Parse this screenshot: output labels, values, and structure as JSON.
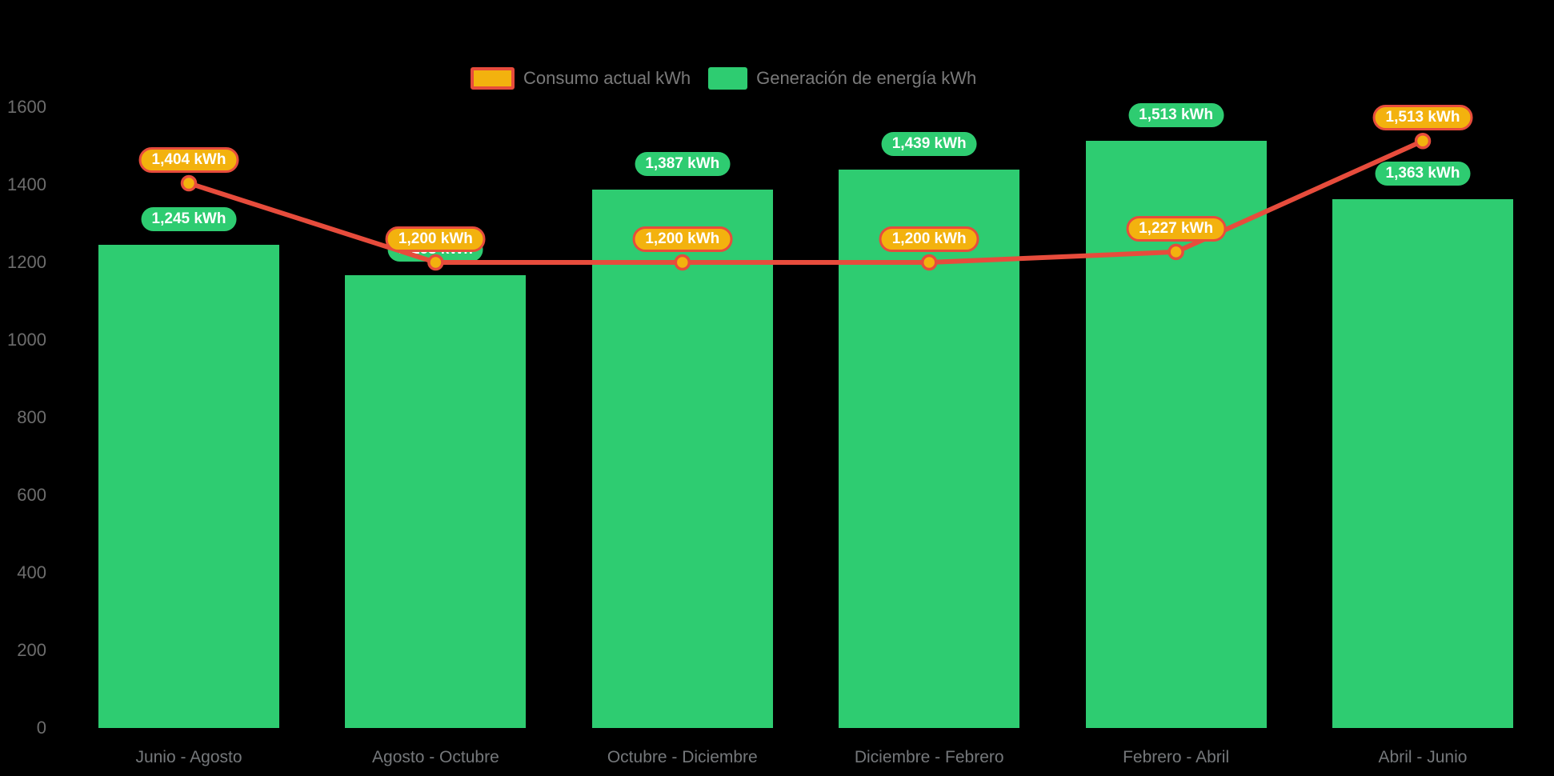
{
  "legend": {
    "items": [
      {
        "id": "consumo-actual",
        "label": "Consumo actual kWh"
      },
      {
        "id": "generacion-energia",
        "label": "Generación de energía kWh"
      }
    ]
  },
  "colors": {
    "background": "#000000",
    "bar_green": "#2ECC71",
    "line_red": "#E74C3C",
    "marker_gold": "#F3B20E",
    "pill_text": "#FFFFFF",
    "axis_tick_text": "#6D6D6D",
    "category_text": "#75787B",
    "legend_text": "#7A7A7A"
  },
  "chart_data": {
    "type": "bar",
    "title": "",
    "xlabel": "",
    "ylabel": "",
    "grid": false,
    "legend_position": "top-center",
    "categories": [
      "Junio - Agosto",
      "Agosto - Octubre",
      "Octubre - Diciembre",
      "Diciembre - Febrero",
      "Febrero - Abril",
      "Abril - Junio"
    ],
    "ylim": [
      0,
      1600
    ],
    "yticks": [
      "0",
      "200",
      "400",
      "600",
      "800",
      "1000",
      "1200",
      "1400",
      "1600"
    ],
    "series": [
      {
        "name": "Generación de energía kWh",
        "render": "bar",
        "color": "#2ECC71",
        "values": [
          1245,
          1168,
          1387,
          1439,
          1513,
          1363
        ],
        "value_labels": [
          "1,245 kWh",
          "1,168 kWh",
          "1,387 kWh",
          "1,439 kWh",
          "1,513 kWh",
          "1,363 kWh"
        ]
      },
      {
        "name": "Consumo actual kWh",
        "render": "line",
        "color": "#E74C3C",
        "marker_fill": "#F3B20E",
        "values": [
          1404,
          1200,
          1200,
          1200,
          1227,
          1513
        ],
        "value_labels": [
          "1,404 kWh",
          "1,200 kWh",
          "1,200 kWh",
          "1,200 kWh",
          "1,227 kWh",
          "1,513 kWh"
        ]
      }
    ]
  }
}
